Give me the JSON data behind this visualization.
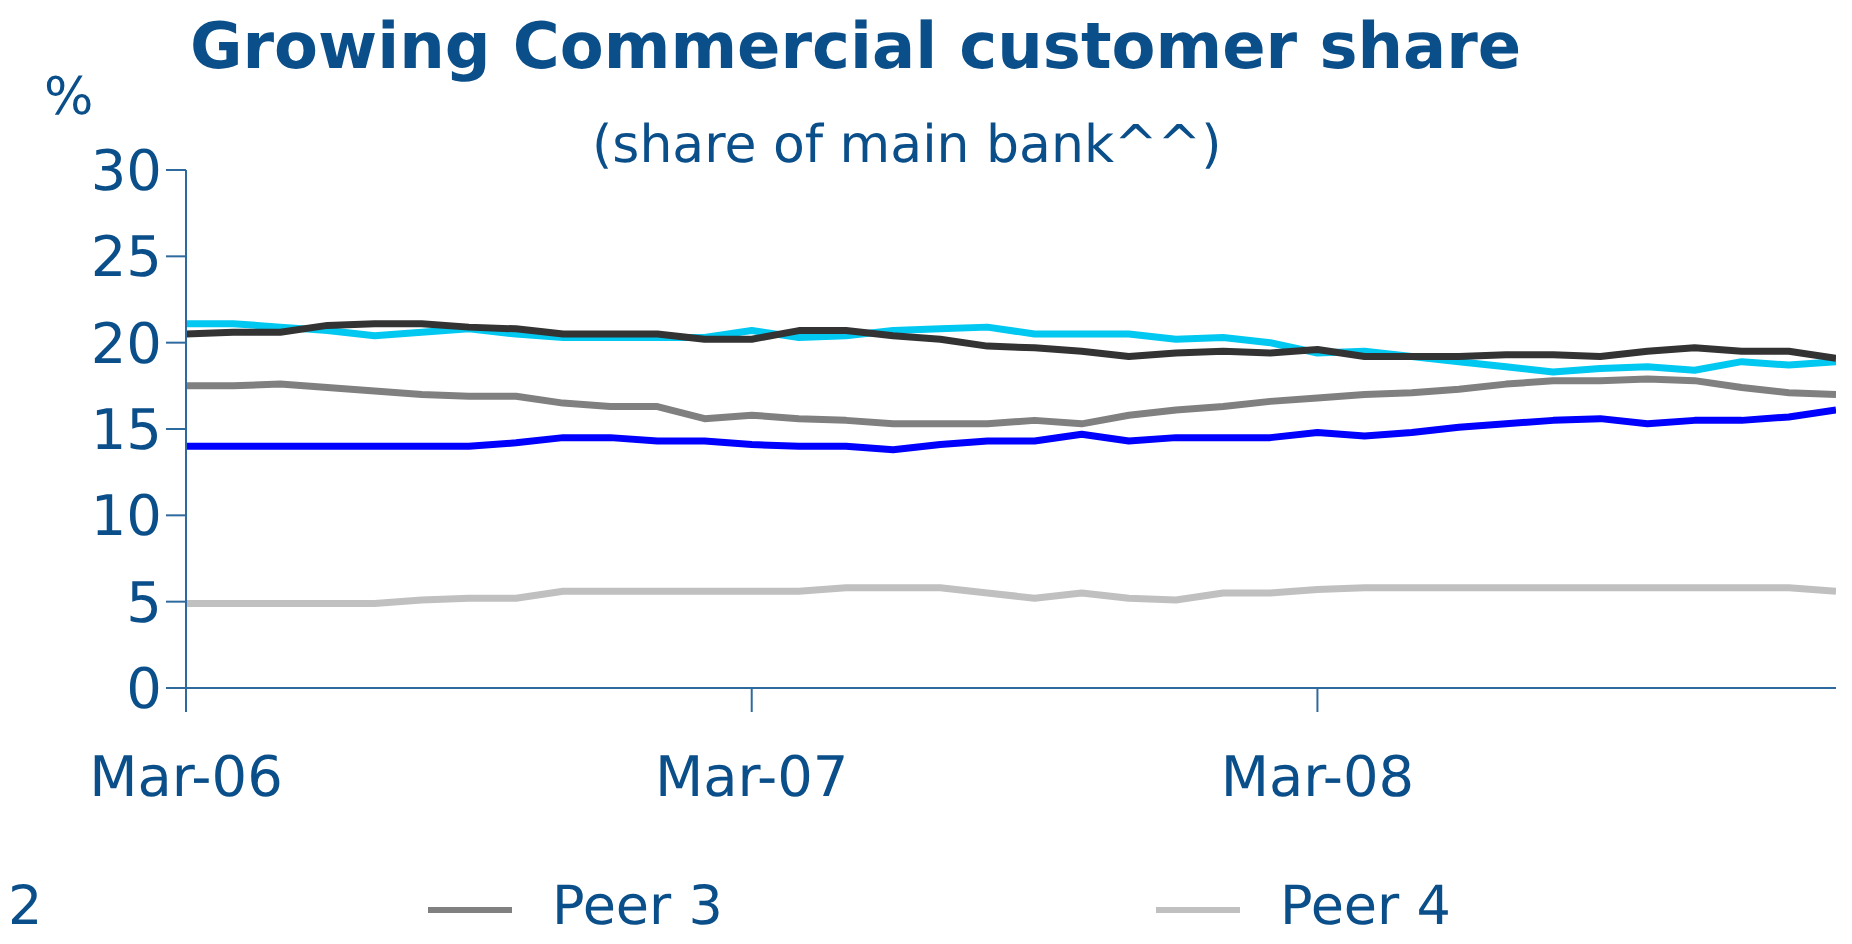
{
  "chart_data": {
    "type": "line",
    "title": "Growing Commercial customer share",
    "subtitle": "(share of main bank^^)",
    "ylabel": "%",
    "annotations": [
      "2"
    ],
    "x": [
      "2006-03",
      "2006-04",
      "2006-05",
      "2006-06",
      "2006-07",
      "2006-08",
      "2006-09",
      "2006-10",
      "2006-11",
      "2006-12",
      "2007-01",
      "2007-02",
      "2007-03",
      "2007-04",
      "2007-05",
      "2007-06",
      "2007-07",
      "2007-08",
      "2007-09",
      "2007-10",
      "2007-11",
      "2007-12",
      "2008-01",
      "2008-02",
      "2008-03",
      "2008-04",
      "2008-05",
      "2008-06",
      "2008-07",
      "2008-08",
      "2008-09",
      "2008-10",
      "2008-11",
      "2008-12",
      "2009-01",
      "2009-02"
    ],
    "series": [
      {
        "color": "#00c8f0",
        "values": [
          21.1,
          21.1,
          20.9,
          20.7,
          20.4,
          20.6,
          20.8,
          20.5,
          20.3,
          20.3,
          20.3,
          20.3,
          20.7,
          20.3,
          20.4,
          20.7,
          20.8,
          20.9,
          20.5,
          20.5,
          20.5,
          20.2,
          20.3,
          20.0,
          19.4,
          19.5,
          19.2,
          18.9,
          18.6,
          18.3,
          18.5,
          18.6,
          18.4,
          18.9,
          18.7,
          18.9
        ]
      },
      {
        "color": "#333333",
        "values": [
          20.5,
          20.6,
          20.6,
          21.0,
          21.1,
          21.1,
          20.9,
          20.8,
          20.5,
          20.5,
          20.5,
          20.2,
          20.2,
          20.7,
          20.7,
          20.4,
          20.2,
          19.8,
          19.7,
          19.5,
          19.2,
          19.4,
          19.5,
          19.4,
          19.6,
          19.2,
          19.2,
          19.2,
          19.3,
          19.3,
          19.2,
          19.5,
          19.7,
          19.5,
          19.5,
          19.1
        ]
      },
      {
        "name": "Peer 3",
        "color": "#808080",
        "values": [
          17.5,
          17.5,
          17.6,
          17.4,
          17.2,
          17.0,
          16.9,
          16.9,
          16.5,
          16.3,
          16.3,
          15.6,
          15.8,
          15.6,
          15.5,
          15.3,
          15.3,
          15.3,
          15.5,
          15.3,
          15.8,
          16.1,
          16.3,
          16.6,
          16.8,
          17.0,
          17.1,
          17.3,
          17.6,
          17.8,
          17.8,
          17.9,
          17.8,
          17.4,
          17.1,
          17.0
        ]
      },
      {
        "color": "#0000ff",
        "values": [
          14.0,
          14.0,
          14.0,
          14.0,
          14.0,
          14.0,
          14.0,
          14.2,
          14.5,
          14.5,
          14.3,
          14.3,
          14.1,
          14.0,
          14.0,
          13.8,
          14.1,
          14.3,
          14.3,
          14.7,
          14.3,
          14.5,
          14.5,
          14.5,
          14.8,
          14.6,
          14.8,
          15.1,
          15.3,
          15.5,
          15.6,
          15.3,
          15.5,
          15.5,
          15.7,
          16.1
        ]
      },
      {
        "name": "Peer 4",
        "color": "#c0c0c0",
        "values": [
          4.9,
          4.9,
          4.9,
          4.9,
          4.9,
          5.1,
          5.2,
          5.2,
          5.6,
          5.6,
          5.6,
          5.6,
          5.6,
          5.6,
          5.8,
          5.8,
          5.8,
          5.5,
          5.2,
          5.5,
          5.2,
          5.1,
          5.5,
          5.5,
          5.7,
          5.8,
          5.8,
          5.8,
          5.8,
          5.8,
          5.8,
          5.8,
          5.8,
          5.8,
          5.8,
          5.6
        ]
      }
    ],
    "xlim": [
      "2006-03",
      "2009-02"
    ],
    "xticks": [
      {
        "value": "2006-03",
        "label": "Mar-06"
      },
      {
        "value": "2007-03",
        "label": "Mar-07"
      },
      {
        "value": "2008-03",
        "label": "Mar-08"
      }
    ],
    "ylim": [
      0,
      30
    ],
    "yticks": [
      0,
      5,
      10,
      15,
      20,
      25,
      30
    ],
    "grid": false,
    "legend": "bottom",
    "marker": "none",
    "line_style": "solid"
  }
}
